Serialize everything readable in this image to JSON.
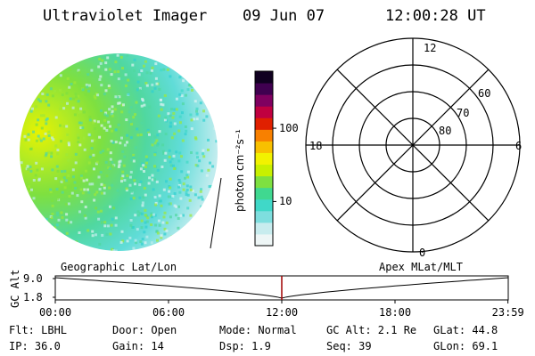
{
  "header": {
    "instrument": "Ultraviolet Imager",
    "date": "09 Jun 07",
    "time": "12:00:28 UT"
  },
  "colorbar": {
    "unit_label": "photon cm⁻²s⁻¹",
    "ticks": [
      {
        "label": "100",
        "value": 100
      },
      {
        "label": "10",
        "value": 10
      }
    ],
    "range": [
      2.5,
      600
    ],
    "scale": "log",
    "colors": [
      "#eef6f6",
      "#c8ecee",
      "#7edede",
      "#40d8c8",
      "#40d890",
      "#7ee040",
      "#c8f000",
      "#f2f200",
      "#f8c000",
      "#f88000",
      "#e02000",
      "#c00040",
      "#800060",
      "#400050",
      "#100020"
    ]
  },
  "polar_plot": {
    "mlt_labels": {
      "top": "12",
      "left": "18",
      "right": "6",
      "bottom": "0"
    },
    "lat_labels": [
      "60",
      "70",
      "80"
    ],
    "lat_values": [
      60,
      70,
      80
    ]
  },
  "timeline": {
    "left_label": "Geographic Lat/Lon",
    "right_label": "Apex MLat/MLT",
    "axis_label": "GC Alt",
    "y_ticks": [
      "9.0",
      "1.8"
    ],
    "x_ticks": [
      "00:00",
      "06:00",
      "12:00",
      "18:00",
      "23:59"
    ],
    "marker_time_hours": 12.0,
    "marker_color": "#a00000"
  },
  "info": {
    "filter": "Flt: LBHL",
    "ip": "IP: 36.0",
    "door": "Door: Open",
    "gain": "Gain: 14",
    "mode": "Mode: Normal",
    "dsp": "Dsp:   1.9",
    "gc_alt": "GC Alt: 2.1 Re",
    "seq": "Seq: 39",
    "glat": "GLat:  44.8",
    "glon": "GLon:  69.1"
  }
}
